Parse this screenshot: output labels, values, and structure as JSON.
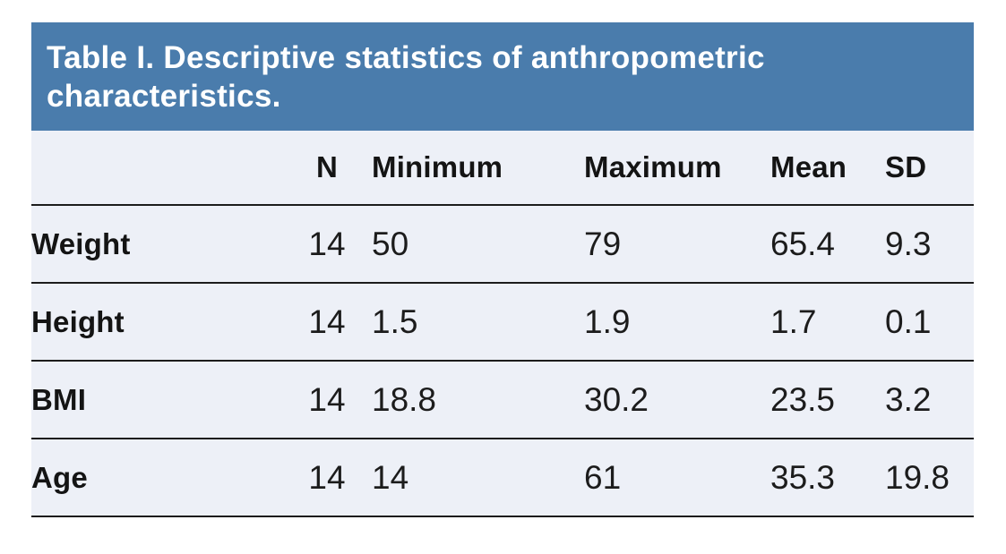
{
  "figure": {
    "title": "Table I. Descriptive statistics of anthropometric characteristics."
  },
  "table": {
    "columns": [
      "",
      "N",
      "Minimum",
      "Maximum",
      "Mean",
      "SD"
    ],
    "rows": [
      [
        "Weight",
        "14",
        "50",
        "79",
        "65.4",
        "9.3"
      ],
      [
        "Height",
        "14",
        "1.5",
        "1.9",
        "1.7",
        "0.1"
      ],
      [
        "BMI",
        "14",
        "18.8",
        "30.2",
        "23.5",
        "3.2"
      ],
      [
        "Age",
        "14",
        "14",
        "61",
        "35.3",
        "19.8"
      ]
    ]
  },
  "colors": {
    "banner_bg": "#4a7cac",
    "banner_text": "#ffffff",
    "table_bg": "#edf0f7",
    "rule_line": "#1c1c1c",
    "body_text": "#1a1a1a"
  }
}
